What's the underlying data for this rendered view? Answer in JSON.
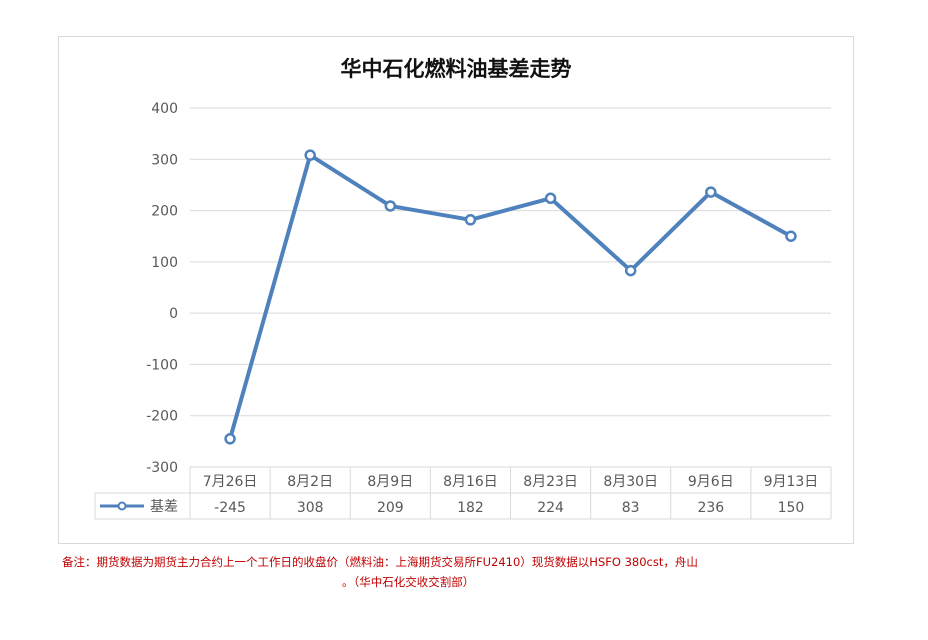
{
  "chart_data": {
    "type": "line",
    "title": "华中石化燃料油基差走势",
    "categories": [
      "7月26日",
      "8月2日",
      "8月9日",
      "8月16日",
      "8月23日",
      "8月30日",
      "9月6日",
      "9月13日"
    ],
    "series": [
      {
        "name": "基差",
        "values": [
          -245,
          308,
          209,
          182,
          224,
          83,
          236,
          150
        ]
      }
    ],
    "ylim": [
      -300,
      400
    ],
    "yticks": [
      "400",
      "300",
      "200",
      "100",
      "0",
      "-100",
      "-200",
      "-300"
    ],
    "ytick_values": [
      400,
      300,
      200,
      100,
      0,
      -100,
      -200,
      -300
    ],
    "grid": true,
    "legend": "data-table",
    "colors": {
      "line": "#4f81bd",
      "marker_fill": "#ffffff",
      "grid": "#d9d9d9",
      "axis_text": "#595959"
    }
  },
  "note": {
    "line1": "备注：期货数据为期货主力合约上一个工作日的收盘价（燃料油：上海期货交易所FU2410）现货数据以HSFO 380cst，舟山",
    "line2": "。（华中石化交收交割部）"
  }
}
